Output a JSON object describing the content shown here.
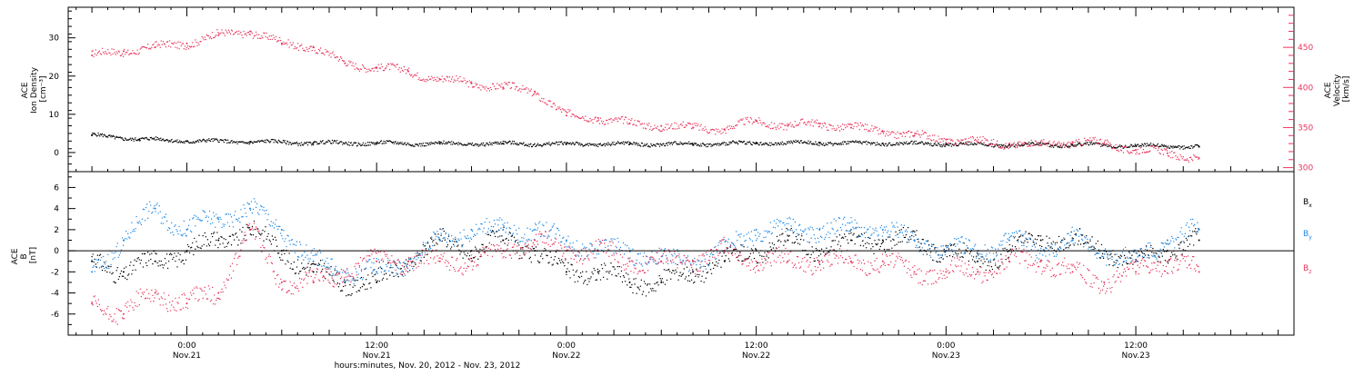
{
  "chart_data": [
    {
      "type": "scatter",
      "panel": "top",
      "left_axis": {
        "label_lines": [
          "ACE",
          "Ion Density",
          "[cm⁻³]"
        ],
        "ticks": [
          0,
          10,
          20,
          30
        ],
        "tick_labels": [
          "0",
          "10",
          "20",
          "30"
        ],
        "ylim": [
          -5,
          38
        ],
        "color": "#000000"
      },
      "right_axis": {
        "label_lines": [
          "ACE",
          "Velocity",
          "[km/s]"
        ],
        "ticks": [
          300,
          350,
          400,
          450
        ],
        "tick_labels": [
          "300",
          "350",
          "400",
          "450"
        ],
        "ylim": [
          295,
          500
        ],
        "color": "#e8365d"
      },
      "series": [
        {
          "axis": "left",
          "color": "#000000",
          "x": [
            -6,
            -3,
            0,
            4,
            8,
            12,
            16,
            20,
            24,
            28,
            32,
            36,
            40,
            44,
            48,
            52,
            56,
            60,
            64
          ],
          "y": [
            4.5,
            3.5,
            3,
            2.8,
            2.5,
            2.4,
            2.3,
            2.3,
            2.2,
            2.2,
            2.2,
            2.4,
            2.5,
            2.4,
            2.2,
            2,
            2,
            1.8,
            1.5
          ]
        },
        {
          "axis": "right",
          "color": "#e8365d",
          "x": [
            -6,
            -4,
            -2,
            0,
            2,
            4,
            6,
            8,
            10,
            12,
            14,
            16,
            18,
            20,
            22,
            24,
            26,
            28,
            30,
            32,
            34,
            36,
            38,
            40,
            42,
            44,
            46,
            48,
            50,
            52,
            54,
            56,
            58,
            60,
            62,
            64
          ],
          "y": [
            440,
            445,
            450,
            455,
            465,
            470,
            455,
            450,
            430,
            425,
            420,
            410,
            405,
            400,
            395,
            365,
            362,
            355,
            352,
            350,
            348,
            358,
            352,
            355,
            350,
            345,
            340,
            335,
            332,
            330,
            328,
            332,
            330,
            322,
            318,
            312
          ]
        }
      ]
    },
    {
      "type": "scatter",
      "panel": "bottom",
      "left_axis": {
        "label_lines": [
          "ACE",
          "B",
          "[nT]"
        ],
        "ticks": [
          -6,
          -4,
          -2,
          0,
          2,
          4,
          6
        ],
        "tick_labels": [
          "-6",
          "-4",
          "-2",
          "0",
          "2",
          "4",
          "6"
        ],
        "ylim": [
          -8,
          7.5
        ],
        "zero_line": true
      },
      "legend_placement": "right",
      "series": [
        {
          "name": "Bx",
          "legend_main": "B",
          "legend_sub": "x",
          "color": "#000000",
          "x": [
            -6,
            -4,
            -2,
            0,
            2,
            4,
            6,
            8,
            10,
            12,
            14,
            16,
            18,
            20,
            22,
            24,
            26,
            28,
            30,
            32,
            34,
            36,
            38,
            40,
            42,
            44,
            46,
            48,
            50,
            52,
            54,
            56,
            58,
            60,
            62,
            64
          ],
          "y": [
            -1,
            -2,
            -1,
            0,
            1,
            2,
            0,
            -2,
            -3,
            -3,
            -1,
            1,
            0,
            1,
            0,
            -2,
            -2,
            -3,
            -3,
            -2,
            -1,
            0,
            1,
            0,
            1,
            1,
            1,
            0,
            -1,
            0,
            1,
            1,
            0,
            -1,
            0,
            1
          ]
        },
        {
          "name": "By",
          "legend_main": "B",
          "legend_sub": "y",
          "color": "#1e88e5",
          "x": [
            -6,
            -4,
            -2,
            0,
            2,
            4,
            6,
            8,
            10,
            12,
            14,
            16,
            18,
            20,
            22,
            24,
            26,
            28,
            30,
            32,
            34,
            36,
            38,
            40,
            42,
            44,
            46,
            48,
            50,
            52,
            54,
            56,
            58,
            60,
            62,
            64
          ],
          "y": [
            -2,
            1,
            4,
            2,
            3,
            4,
            2,
            -1,
            -2,
            -2,
            -1,
            1,
            2,
            2,
            2,
            1,
            0,
            0,
            -1,
            -1,
            0,
            2,
            2,
            2,
            2,
            2,
            1,
            0,
            0,
            1,
            0,
            1,
            0,
            -1,
            1,
            2
          ]
        },
        {
          "name": "Bz",
          "legend_main": "B",
          "legend_sub": "z",
          "color": "#e8365d",
          "x": [
            -6,
            -4,
            -2,
            0,
            2,
            4,
            6,
            8,
            10,
            12,
            14,
            16,
            18,
            20,
            22,
            24,
            26,
            28,
            30,
            32,
            34,
            36,
            38,
            40,
            42,
            44,
            46,
            48,
            50,
            52,
            54,
            56,
            58,
            60,
            62,
            64
          ],
          "y": [
            -5,
            -6,
            -4,
            -5,
            -4,
            2,
            -3,
            -3,
            -2,
            -1,
            -1,
            -1,
            -1,
            0,
            1,
            0,
            0,
            -1,
            -1,
            -1,
            0,
            -1,
            -1,
            -1,
            -1,
            -1,
            -2,
            -2,
            -2,
            -1,
            -1,
            -2,
            -3,
            -2,
            -1,
            -2
          ]
        }
      ]
    }
  ],
  "time_axis": {
    "xlim": [
      -7.5,
      70
    ],
    "major_ticks": [
      {
        "x": 0,
        "time": "0:00",
        "date": "Nov.21"
      },
      {
        "x": 12,
        "time": "12:00",
        "date": "Nov.21"
      },
      {
        "x": 24,
        "time": "0:00",
        "date": "Nov.22"
      },
      {
        "x": 36,
        "time": "12:00",
        "date": "Nov.22"
      },
      {
        "x": 48,
        "time": "0:00",
        "date": "Nov.23"
      },
      {
        "x": 60,
        "time": "12:00",
        "date": "Nov.23"
      }
    ],
    "title": "hours:minutes, Nov. 20, 2012 - Nov. 23, 2012"
  }
}
